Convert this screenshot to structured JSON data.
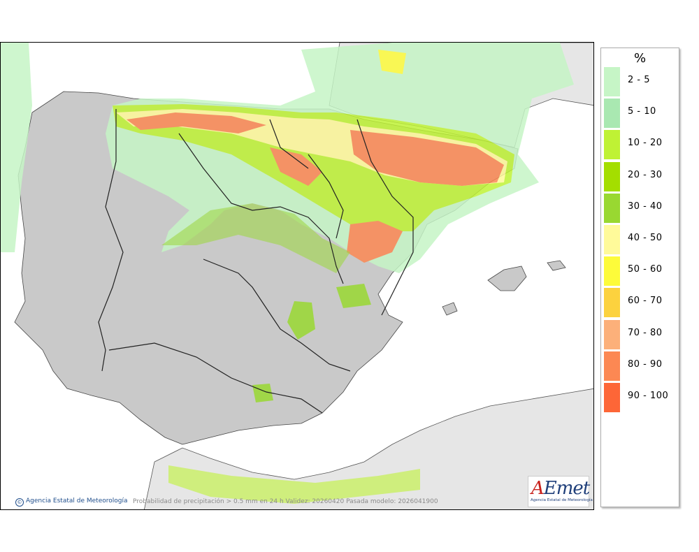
{
  "legend": {
    "title": "%",
    "items": [
      {
        "label": "2 - 5",
        "color": "#c6f5c6"
      },
      {
        "label": "5 - 10",
        "color": "#a9e8b1"
      },
      {
        "label": "10 - 20",
        "color": "#bff234"
      },
      {
        "label": "20 - 30",
        "color": "#a4de00"
      },
      {
        "label": "30 - 40",
        "color": "#99d831"
      },
      {
        "label": "40 - 50",
        "color": "#fffa9a"
      },
      {
        "label": "50 - 60",
        "color": "#fdfb3a"
      },
      {
        "label": "60 - 70",
        "color": "#fcd23e"
      },
      {
        "label": "70 - 80",
        "color": "#fcb07a"
      },
      {
        "label": "80 - 90",
        "color": "#fc8853"
      },
      {
        "label": "90 - 100",
        "color": "#fd6637"
      }
    ]
  },
  "footer": {
    "copyright": "Agencia Estatal de Meteorología",
    "caption": "Probabilidad de precipitación > 0.5 mm en 24 h Validez: 20260420 Pasada modelo: 2026041900"
  },
  "logo": {
    "wordmark_a": "A",
    "wordmark_rest": "Emet",
    "subtitle": "Agencia Estatal de Meteorología"
  },
  "colors": {
    "land": "#c9c9c9",
    "other_land": "#e6e6e6",
    "sea": "#ffffff",
    "border": "#222222"
  }
}
